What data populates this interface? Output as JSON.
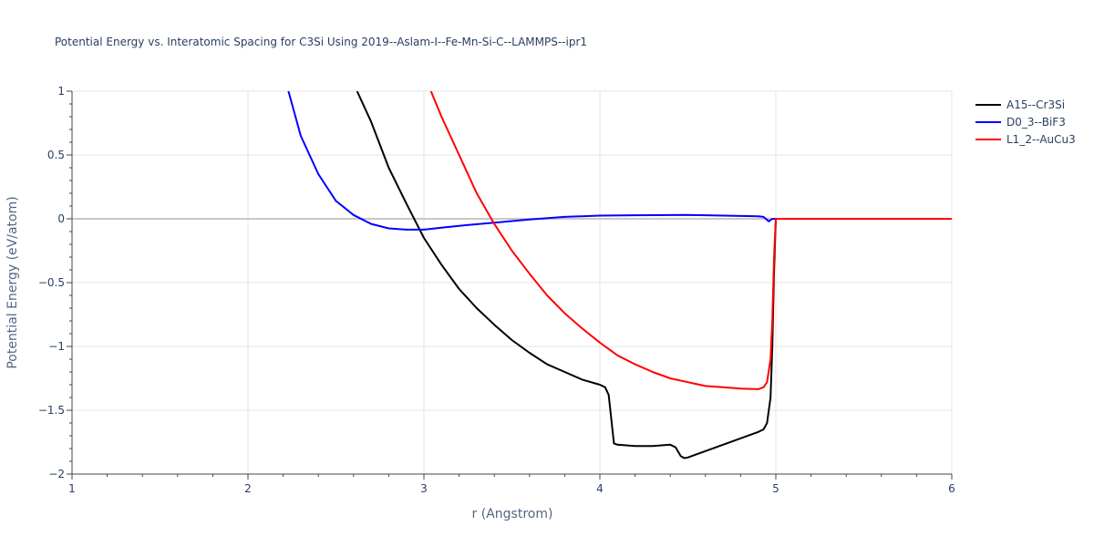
{
  "chart_data": {
    "type": "line",
    "title": "Potential Energy vs. Interatomic Spacing for C3Si Using 2019--Aslam-I--Fe-Mn-Si-C--LAMMPS--ipr1",
    "xlabel": "r (Angstrom)",
    "ylabel": "Potential Energy (eV/atom)",
    "xlim": [
      1,
      6
    ],
    "ylim": [
      -2,
      1
    ],
    "x_ticks": [
      1,
      2,
      3,
      4,
      5,
      6
    ],
    "x_tick_labels": [
      "1",
      "2",
      "3",
      "4",
      "5",
      "6"
    ],
    "y_ticks": [
      1,
      0.5,
      0,
      -0.5,
      -1,
      -1.5,
      -2
    ],
    "y_tick_labels": [
      "1",
      "0.5",
      "0",
      "−0.5",
      "−1",
      "−1.5",
      "−2"
    ],
    "grid": true,
    "legend_position": "top-right",
    "series": [
      {
        "name": "A15--Cr3Si",
        "color": "#000000",
        "x": [
          2.62,
          2.7,
          2.8,
          2.9,
          3.0,
          3.1,
          3.2,
          3.3,
          3.4,
          3.5,
          3.6,
          3.7,
          3.8,
          3.9,
          4.0,
          4.03,
          4.05,
          4.08,
          4.1,
          4.2,
          4.3,
          4.4,
          4.43,
          4.46,
          4.48,
          4.5,
          4.6,
          4.7,
          4.8,
          4.9,
          4.93,
          4.95,
          4.97,
          4.98,
          4.99,
          5.0,
          5.1,
          5.3,
          5.6,
          6.0
        ],
        "y": [
          1.0,
          0.76,
          0.4,
          0.12,
          -0.15,
          -0.36,
          -0.55,
          -0.7,
          -0.83,
          -0.95,
          -1.05,
          -1.14,
          -1.2,
          -1.26,
          -1.3,
          -1.32,
          -1.38,
          -1.76,
          -1.77,
          -1.78,
          -1.78,
          -1.77,
          -1.79,
          -1.86,
          -1.875,
          -1.87,
          -1.82,
          -1.77,
          -1.72,
          -1.67,
          -1.65,
          -1.6,
          -1.4,
          -1.0,
          -0.4,
          0.0,
          0.0,
          0.0,
          0.0,
          0.0
        ]
      },
      {
        "name": "D0_3--BiF3",
        "color": "#0000ff",
        "x": [
          2.23,
          2.3,
          2.4,
          2.5,
          2.6,
          2.7,
          2.8,
          2.9,
          3.0,
          3.1,
          3.2,
          3.4,
          3.6,
          3.8,
          4.0,
          4.2,
          4.5,
          4.7,
          4.9,
          4.93,
          4.96,
          4.98,
          5.0,
          5.1,
          5.3,
          5.6,
          6.0
        ],
        "y": [
          1.0,
          0.65,
          0.35,
          0.14,
          0.03,
          -0.04,
          -0.075,
          -0.085,
          -0.085,
          -0.07,
          -0.055,
          -0.03,
          -0.005,
          0.015,
          0.025,
          0.028,
          0.03,
          0.025,
          0.02,
          0.015,
          -0.02,
          0.0,
          0.0,
          0.0,
          0.0,
          0.0,
          0.0
        ]
      },
      {
        "name": "L1_2--AuCu3",
        "color": "#ff0000",
        "x": [
          3.04,
          3.1,
          3.2,
          3.3,
          3.4,
          3.5,
          3.6,
          3.7,
          3.8,
          3.9,
          4.0,
          4.1,
          4.2,
          4.3,
          4.4,
          4.5,
          4.6,
          4.7,
          4.8,
          4.9,
          4.93,
          4.95,
          4.97,
          4.98,
          4.99,
          5.0,
          5.1,
          5.3,
          5.6,
          6.0
        ],
        "y": [
          1.0,
          0.8,
          0.5,
          0.2,
          -0.04,
          -0.25,
          -0.43,
          -0.6,
          -0.74,
          -0.86,
          -0.97,
          -1.07,
          -1.14,
          -1.2,
          -1.25,
          -1.28,
          -1.31,
          -1.32,
          -1.33,
          -1.335,
          -1.32,
          -1.28,
          -1.1,
          -0.8,
          -0.3,
          0.0,
          0.0,
          0.0,
          0.0,
          0.0
        ]
      }
    ]
  }
}
